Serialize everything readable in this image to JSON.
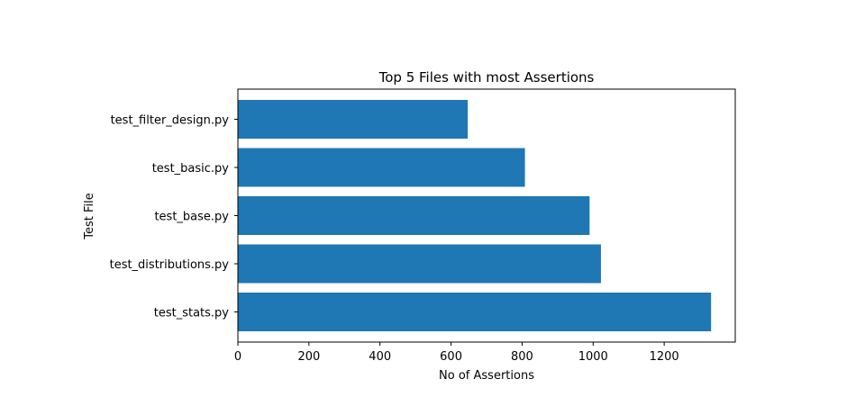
{
  "chart_data": {
    "type": "bar",
    "orientation": "horizontal",
    "title": "Top 5 Files with most Assertions",
    "xlabel": "No of Assertions",
    "ylabel": "Test File",
    "categories": [
      "test_stats.py",
      "test_distributions.py",
      "test_base.py",
      "test_basic.py",
      "test_filter_design.py"
    ],
    "values": [
      1332,
      1022,
      990,
      808,
      647
    ],
    "xlim": [
      0,
      1400
    ],
    "xticks": [
      0,
      200,
      400,
      600,
      800,
      1000,
      1200
    ],
    "bar_color": "#1f77b4",
    "grid": false,
    "legend": "none"
  }
}
